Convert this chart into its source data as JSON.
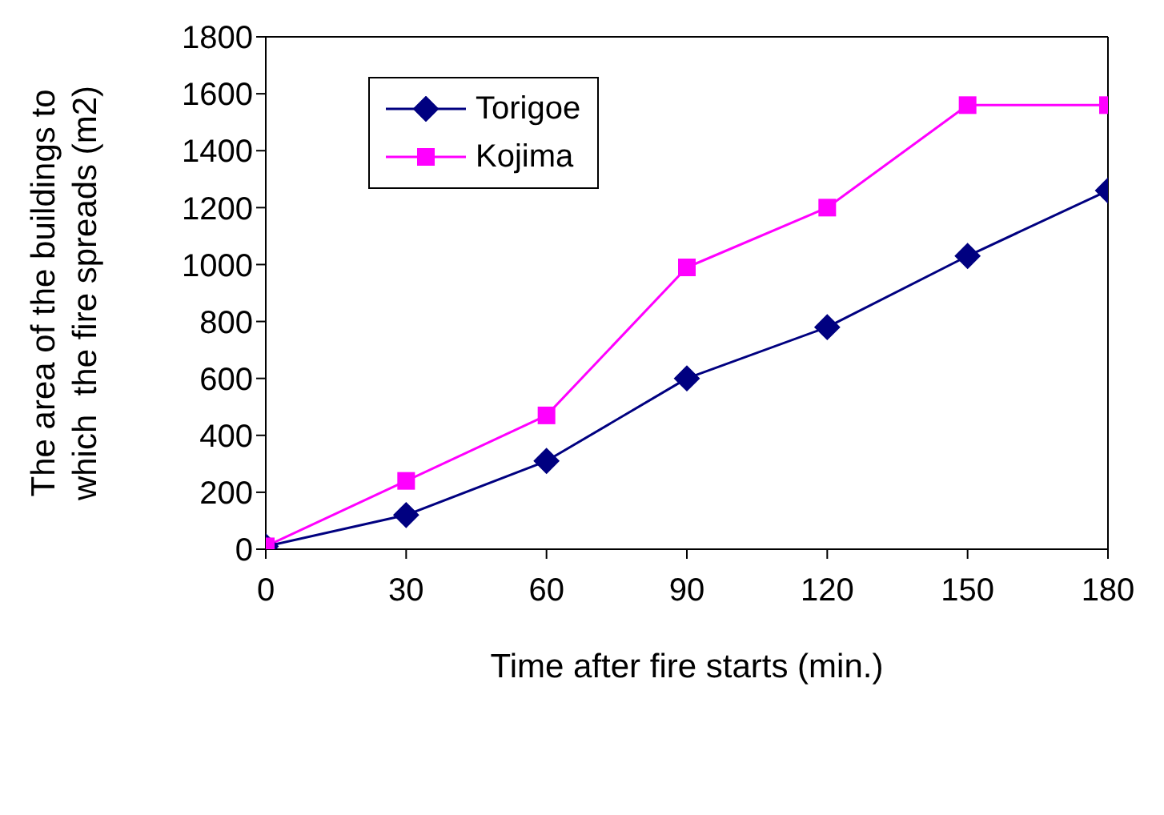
{
  "chart_data": {
    "type": "line",
    "xlabel": "Time after fire starts (min.)",
    "ylabel": "The area of the buildings to\nwhich  the fire spreads (m2)",
    "x": [
      0,
      30,
      60,
      90,
      120,
      150,
      180
    ],
    "series": [
      {
        "name": "Torigoe",
        "color": "#000080",
        "marker": "diamond",
        "values": [
          10,
          120,
          310,
          600,
          780,
          1030,
          1260
        ]
      },
      {
        "name": "Kojima",
        "color": "#ff00ff",
        "marker": "square",
        "values": [
          10,
          240,
          470,
          990,
          1200,
          1560,
          1560
        ]
      }
    ],
    "xlim": [
      0,
      180
    ],
    "xticks": [
      0,
      30,
      60,
      90,
      120,
      150,
      180
    ],
    "ylim": [
      0,
      1800
    ],
    "yticks": [
      0,
      200,
      400,
      600,
      800,
      1000,
      1200,
      1400,
      1600,
      1800
    ],
    "grid": false,
    "legend": "top left",
    "line_style": "solid"
  }
}
